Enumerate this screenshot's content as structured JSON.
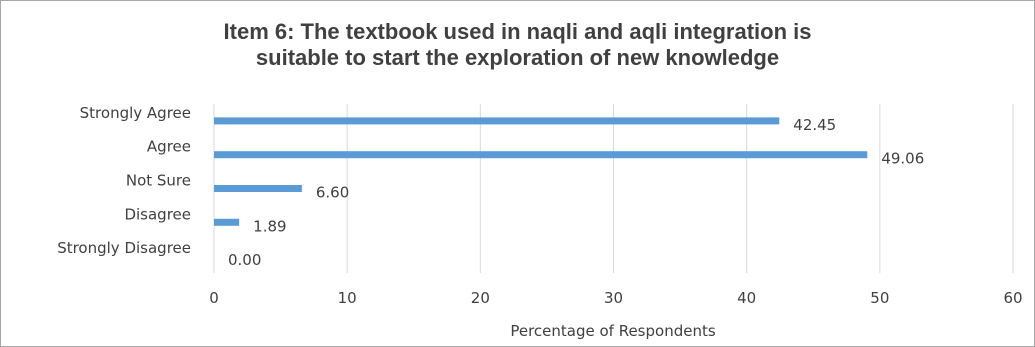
{
  "chart_data": {
    "type": "bar",
    "orientation": "horizontal",
    "title_lines": [
      "Item 6:  The textbook used in naqli and aqli integration is",
      "suitable to start the exploration of new knowledge"
    ],
    "categories": [
      "Strongly Agree",
      "Agree",
      "Not Sure",
      "Disagree",
      "Strongly Disagree"
    ],
    "values": [
      42.45,
      49.06,
      6.6,
      1.89,
      0.0
    ],
    "data_labels": [
      "42.45",
      "49.06",
      "6.60",
      "1.89",
      "0.00"
    ],
    "xlabel": "Percentage of Respondents",
    "ylabel": "",
    "xlim": [
      0,
      60
    ],
    "xticks": [
      0,
      10,
      20,
      30,
      40,
      50,
      60
    ],
    "grid": "vertical",
    "legend": "none",
    "bar_color": "#5b9bd5",
    "grid_color": "#d9d9d9",
    "text_color": "#404040"
  }
}
